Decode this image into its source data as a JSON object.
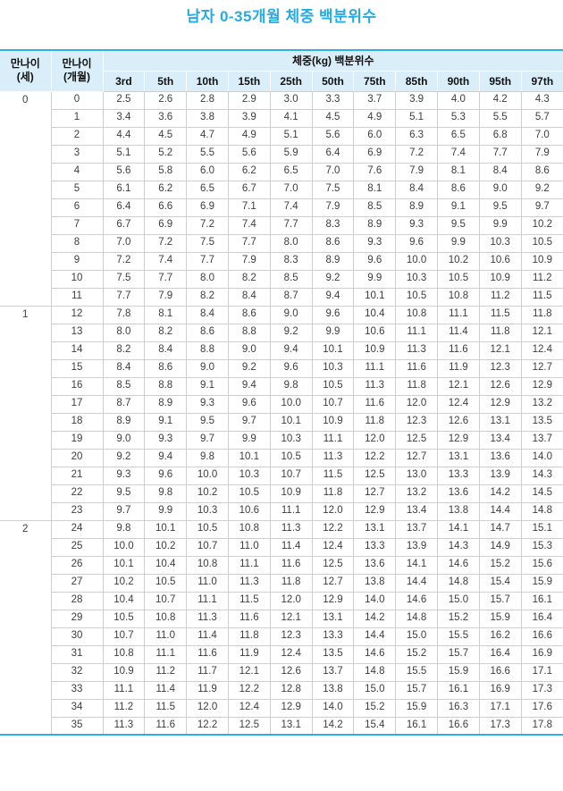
{
  "title": "남자 0-35개월 체중 백분위수",
  "colors": {
    "accent_blue": "#2cb0e6",
    "title_blue": "#25abe3",
    "header_bg": "#d9eef9",
    "grid_gray": "#cfcfcf"
  },
  "table": {
    "corner_headers": [
      {
        "line1": "만나이",
        "line2": "(세)"
      },
      {
        "line1": "만나이",
        "line2": "(개월)"
      }
    ],
    "span_header": "체중(kg) 백분위수",
    "percentiles": [
      "3rd",
      "5th",
      "10th",
      "15th",
      "25th",
      "50th",
      "75th",
      "85th",
      "90th",
      "95th",
      "97th"
    ],
    "groups": [
      {
        "age_years": "0",
        "rows": [
          {
            "month": "0",
            "values": [
              "2.5",
              "2.6",
              "2.8",
              "2.9",
              "3.0",
              "3.3",
              "3.7",
              "3.9",
              "4.0",
              "4.2",
              "4.3"
            ]
          },
          {
            "month": "1",
            "values": [
              "3.4",
              "3.6",
              "3.8",
              "3.9",
              "4.1",
              "4.5",
              "4.9",
              "5.1",
              "5.3",
              "5.5",
              "5.7"
            ]
          },
          {
            "month": "2",
            "values": [
              "4.4",
              "4.5",
              "4.7",
              "4.9",
              "5.1",
              "5.6",
              "6.0",
              "6.3",
              "6.5",
              "6.8",
              "7.0"
            ]
          },
          {
            "month": "3",
            "values": [
              "5.1",
              "5.2",
              "5.5",
              "5.6",
              "5.9",
              "6.4",
              "6.9",
              "7.2",
              "7.4",
              "7.7",
              "7.9"
            ]
          },
          {
            "month": "4",
            "values": [
              "5.6",
              "5.8",
              "6.0",
              "6.2",
              "6.5",
              "7.0",
              "7.6",
              "7.9",
              "8.1",
              "8.4",
              "8.6"
            ]
          },
          {
            "month": "5",
            "values": [
              "6.1",
              "6.2",
              "6.5",
              "6.7",
              "7.0",
              "7.5",
              "8.1",
              "8.4",
              "8.6",
              "9.0",
              "9.2"
            ]
          },
          {
            "month": "6",
            "values": [
              "6.4",
              "6.6",
              "6.9",
              "7.1",
              "7.4",
              "7.9",
              "8.5",
              "8.9",
              "9.1",
              "9.5",
              "9.7"
            ]
          },
          {
            "month": "7",
            "values": [
              "6.7",
              "6.9",
              "7.2",
              "7.4",
              "7.7",
              "8.3",
              "8.9",
              "9.3",
              "9.5",
              "9.9",
              "10.2"
            ]
          },
          {
            "month": "8",
            "values": [
              "7.0",
              "7.2",
              "7.5",
              "7.7",
              "8.0",
              "8.6",
              "9.3",
              "9.6",
              "9.9",
              "10.3",
              "10.5"
            ]
          },
          {
            "month": "9",
            "values": [
              "7.2",
              "7.4",
              "7.7",
              "7.9",
              "8.3",
              "8.9",
              "9.6",
              "10.0",
              "10.2",
              "10.6",
              "10.9"
            ]
          },
          {
            "month": "10",
            "values": [
              "7.5",
              "7.7",
              "8.0",
              "8.2",
              "8.5",
              "9.2",
              "9.9",
              "10.3",
              "10.5",
              "10.9",
              "11.2"
            ]
          },
          {
            "month": "11",
            "values": [
              "7.7",
              "7.9",
              "8.2",
              "8.4",
              "8.7",
              "9.4",
              "10.1",
              "10.5",
              "10.8",
              "11.2",
              "11.5"
            ]
          }
        ]
      },
      {
        "age_years": "1",
        "rows": [
          {
            "month": "12",
            "values": [
              "7.8",
              "8.1",
              "8.4",
              "8.6",
              "9.0",
              "9.6",
              "10.4",
              "10.8",
              "11.1",
              "11.5",
              "11.8"
            ]
          },
          {
            "month": "13",
            "values": [
              "8.0",
              "8.2",
              "8.6",
              "8.8",
              "9.2",
              "9.9",
              "10.6",
              "11.1",
              "11.4",
              "11.8",
              "12.1"
            ]
          },
          {
            "month": "14",
            "values": [
              "8.2",
              "8.4",
              "8.8",
              "9.0",
              "9.4",
              "10.1",
              "10.9",
              "11.3",
              "11.6",
              "12.1",
              "12.4"
            ]
          },
          {
            "month": "15",
            "values": [
              "8.4",
              "8.6",
              "9.0",
              "9.2",
              "9.6",
              "10.3",
              "11.1",
              "11.6",
              "11.9",
              "12.3",
              "12.7"
            ]
          },
          {
            "month": "16",
            "values": [
              "8.5",
              "8.8",
              "9.1",
              "9.4",
              "9.8",
              "10.5",
              "11.3",
              "11.8",
              "12.1",
              "12.6",
              "12.9"
            ]
          },
          {
            "month": "17",
            "values": [
              "8.7",
              "8.9",
              "9.3",
              "9.6",
              "10.0",
              "10.7",
              "11.6",
              "12.0",
              "12.4",
              "12.9",
              "13.2"
            ]
          },
          {
            "month": "18",
            "values": [
              "8.9",
              "9.1",
              "9.5",
              "9.7",
              "10.1",
              "10.9",
              "11.8",
              "12.3",
              "12.6",
              "13.1",
              "13.5"
            ]
          },
          {
            "month": "19",
            "values": [
              "9.0",
              "9.3",
              "9.7",
              "9.9",
              "10.3",
              "11.1",
              "12.0",
              "12.5",
              "12.9",
              "13.4",
              "13.7"
            ]
          },
          {
            "month": "20",
            "values": [
              "9.2",
              "9.4",
              "9.8",
              "10.1",
              "10.5",
              "11.3",
              "12.2",
              "12.7",
              "13.1",
              "13.6",
              "14.0"
            ]
          },
          {
            "month": "21",
            "values": [
              "9.3",
              "9.6",
              "10.0",
              "10.3",
              "10.7",
              "11.5",
              "12.5",
              "13.0",
              "13.3",
              "13.9",
              "14.3"
            ]
          },
          {
            "month": "22",
            "values": [
              "9.5",
              "9.8",
              "10.2",
              "10.5",
              "10.9",
              "11.8",
              "12.7",
              "13.2",
              "13.6",
              "14.2",
              "14.5"
            ]
          },
          {
            "month": "23",
            "values": [
              "9.7",
              "9.9",
              "10.3",
              "10.6",
              "11.1",
              "12.0",
              "12.9",
              "13.4",
              "13.8",
              "14.4",
              "14.8"
            ]
          }
        ]
      },
      {
        "age_years": "2",
        "rows": [
          {
            "month": "24",
            "values": [
              "9.8",
              "10.1",
              "10.5",
              "10.8",
              "11.3",
              "12.2",
              "13.1",
              "13.7",
              "14.1",
              "14.7",
              "15.1"
            ]
          },
          {
            "month": "25",
            "values": [
              "10.0",
              "10.2",
              "10.7",
              "11.0",
              "11.4",
              "12.4",
              "13.3",
              "13.9",
              "14.3",
              "14.9",
              "15.3"
            ]
          },
          {
            "month": "26",
            "values": [
              "10.1",
              "10.4",
              "10.8",
              "11.1",
              "11.6",
              "12.5",
              "13.6",
              "14.1",
              "14.6",
              "15.2",
              "15.6"
            ]
          },
          {
            "month": "27",
            "values": [
              "10.2",
              "10.5",
              "11.0",
              "11.3",
              "11.8",
              "12.7",
              "13.8",
              "14.4",
              "14.8",
              "15.4",
              "15.9"
            ]
          },
          {
            "month": "28",
            "values": [
              "10.4",
              "10.7",
              "11.1",
              "11.5",
              "12.0",
              "12.9",
              "14.0",
              "14.6",
              "15.0",
              "15.7",
              "16.1"
            ]
          },
          {
            "month": "29",
            "values": [
              "10.5",
              "10.8",
              "11.3",
              "11.6",
              "12.1",
              "13.1",
              "14.2",
              "14.8",
              "15.2",
              "15.9",
              "16.4"
            ]
          },
          {
            "month": "30",
            "values": [
              "10.7",
              "11.0",
              "11.4",
              "11.8",
              "12.3",
              "13.3",
              "14.4",
              "15.0",
              "15.5",
              "16.2",
              "16.6"
            ]
          },
          {
            "month": "31",
            "values": [
              "10.8",
              "11.1",
              "11.6",
              "11.9",
              "12.4",
              "13.5",
              "14.6",
              "15.2",
              "15.7",
              "16.4",
              "16.9"
            ]
          },
          {
            "month": "32",
            "values": [
              "10.9",
              "11.2",
              "11.7",
              "12.1",
              "12.6",
              "13.7",
              "14.8",
              "15.5",
              "15.9",
              "16.6",
              "17.1"
            ]
          },
          {
            "month": "33",
            "values": [
              "11.1",
              "11.4",
              "11.9",
              "12.2",
              "12.8",
              "13.8",
              "15.0",
              "15.7",
              "16.1",
              "16.9",
              "17.3"
            ]
          },
          {
            "month": "34",
            "values": [
              "11.2",
              "11.5",
              "12.0",
              "12.4",
              "12.9",
              "14.0",
              "15.2",
              "15.9",
              "16.3",
              "17.1",
              "17.6"
            ]
          },
          {
            "month": "35",
            "values": [
              "11.3",
              "11.6",
              "12.2",
              "12.5",
              "13.1",
              "14.2",
              "15.4",
              "16.1",
              "16.6",
              "17.3",
              "17.8"
            ]
          }
        ]
      }
    ]
  }
}
